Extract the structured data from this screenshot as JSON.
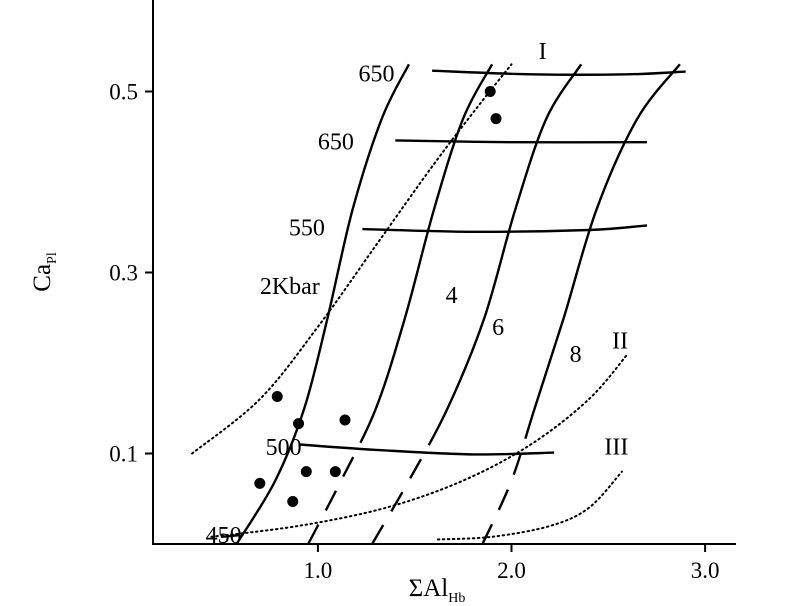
{
  "chart_data": {
    "type": "scatter",
    "title": "",
    "xlabel": {
      "main": "ΣAl",
      "sub": "Hb"
    },
    "ylabel": {
      "main": "Ca",
      "sub": "Pl"
    },
    "xlim": [
      0.0,
      3.2
    ],
    "ylim": [
      0.0,
      0.6
    ],
    "x_ticks": [
      {
        "value": 1.0,
        "label": "1.0"
      },
      {
        "value": 2.0,
        "label": "2.0"
      },
      {
        "value": 3.0,
        "label": "3.0"
      }
    ],
    "y_ticks": [
      {
        "value": 0.1,
        "label": "0.1"
      },
      {
        "value": 0.3,
        "label": "0.3"
      },
      {
        "value": 0.5,
        "label": "0.5"
      }
    ],
    "grid": false,
    "points": [
      {
        "x": 1.89,
        "y": 0.5
      },
      {
        "x": 1.92,
        "y": 0.47
      },
      {
        "x": 0.79,
        "y": 0.163
      },
      {
        "x": 0.9,
        "y": 0.133
      },
      {
        "x": 1.14,
        "y": 0.137
      },
      {
        "x": 0.7,
        "y": 0.067
      },
      {
        "x": 0.94,
        "y": 0.08
      },
      {
        "x": 1.09,
        "y": 0.08
      },
      {
        "x": 0.87,
        "y": 0.047
      }
    ],
    "isobars": [
      {
        "label": "2Kbar",
        "style": "solid",
        "points": [
          [
            0.58,
            0.0
          ],
          [
            0.78,
            0.07
          ],
          [
            0.93,
            0.15
          ],
          [
            1.05,
            0.25
          ],
          [
            1.18,
            0.37
          ],
          [
            1.33,
            0.47
          ],
          [
            1.47,
            0.53
          ]
        ]
      },
      {
        "label": "4",
        "style": "dash-solid",
        "points": [
          [
            0.95,
            0.0
          ],
          [
            1.12,
            0.07
          ],
          [
            1.3,
            0.15
          ],
          [
            1.45,
            0.25
          ],
          [
            1.6,
            0.37
          ],
          [
            1.75,
            0.47
          ],
          [
            1.9,
            0.53
          ]
        ]
      },
      {
        "label": "6",
        "style": "dash-solid",
        "points": [
          [
            1.28,
            0.0
          ],
          [
            1.47,
            0.07
          ],
          [
            1.67,
            0.15
          ],
          [
            1.86,
            0.25
          ],
          [
            2.02,
            0.37
          ],
          [
            2.18,
            0.47
          ],
          [
            2.36,
            0.53
          ]
        ]
      },
      {
        "label": "8",
        "style": "dash-solid",
        "points": [
          [
            1.85,
            0.0
          ],
          [
            2.0,
            0.07
          ],
          [
            2.12,
            0.15
          ],
          [
            2.27,
            0.25
          ],
          [
            2.44,
            0.37
          ],
          [
            2.65,
            0.47
          ],
          [
            2.87,
            0.53
          ]
        ]
      }
    ],
    "isotherms": [
      {
        "label": "650",
        "points": [
          [
            1.59,
            0.523
          ],
          [
            2.1,
            0.519
          ],
          [
            2.6,
            0.519
          ],
          [
            2.9,
            0.522
          ]
        ]
      },
      {
        "label": "650",
        "points": [
          [
            1.4,
            0.446
          ],
          [
            2.0,
            0.444
          ],
          [
            2.7,
            0.444
          ]
        ]
      },
      {
        "label": "550",
        "points": [
          [
            1.23,
            0.348
          ],
          [
            1.8,
            0.345
          ],
          [
            2.4,
            0.347
          ],
          [
            2.7,
            0.352
          ]
        ]
      },
      {
        "label": "500",
        "points": [
          [
            0.9,
            0.11
          ],
          [
            1.3,
            0.104
          ],
          [
            1.8,
            0.099
          ],
          [
            2.22,
            0.101
          ]
        ]
      },
      {
        "label": "450",
        "points": [
          [
            0.5,
            0.008
          ],
          [
            0.6,
            0.01
          ]
        ]
      }
    ],
    "boundaries": [
      {
        "label": "I",
        "style": "dotted",
        "points": [
          [
            0.35,
            0.1
          ],
          [
            0.7,
            0.16
          ],
          [
            1.0,
            0.24
          ],
          [
            1.3,
            0.33
          ],
          [
            1.6,
            0.42
          ],
          [
            1.85,
            0.49
          ],
          [
            2.0,
            0.53
          ]
        ]
      },
      {
        "label": "II",
        "style": "dotted",
        "points": [
          [
            0.45,
            0.008
          ],
          [
            0.9,
            0.02
          ],
          [
            1.35,
            0.04
          ],
          [
            1.75,
            0.07
          ],
          [
            2.1,
            0.11
          ],
          [
            2.4,
            0.16
          ],
          [
            2.6,
            0.21
          ]
        ]
      },
      {
        "label": "III",
        "style": "dotted",
        "points": [
          [
            1.62,
            0.005
          ],
          [
            1.9,
            0.008
          ],
          [
            2.2,
            0.02
          ],
          [
            2.4,
            0.04
          ],
          [
            2.57,
            0.08
          ]
        ]
      }
    ],
    "label_positions": {
      "iso_2": [
        0.7,
        0.285
      ],
      "iso_4": [
        1.66,
        0.275
      ],
      "iso_6": [
        1.9,
        0.24
      ],
      "iso_8": [
        2.3,
        0.21
      ],
      "t650a": [
        1.21,
        0.52
      ],
      "t650b": [
        1.0,
        0.445
      ],
      "t550": [
        0.85,
        0.35
      ],
      "t500": [
        0.73,
        0.107
      ],
      "t450": [
        0.42,
        0.01
      ],
      "bI": [
        2.14,
        0.545
      ],
      "bII": [
        2.52,
        0.225
      ],
      "bIII": [
        2.48,
        0.108
      ]
    }
  }
}
